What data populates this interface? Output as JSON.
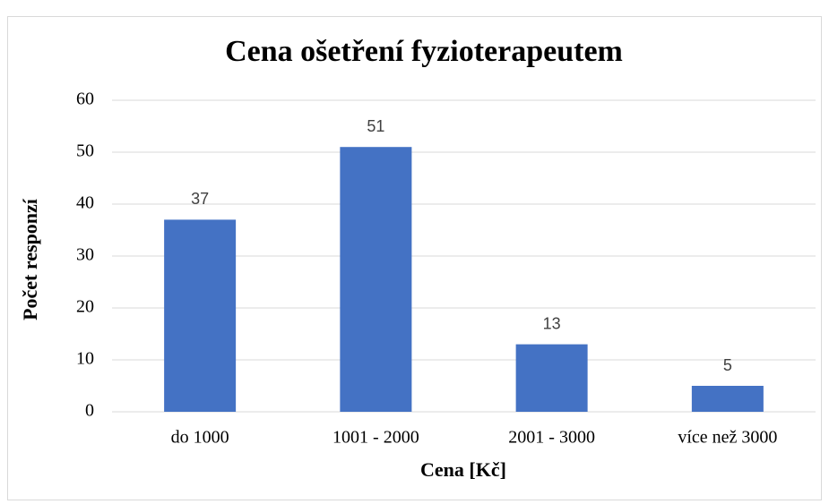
{
  "chart_data": {
    "type": "bar",
    "title": "Cena ošetření fyzioterapeutem",
    "x_label": "Cena [Kč]",
    "y_label": "Počet responzí",
    "categories": [
      "do 1000",
      "1001 - 2000",
      "2001 - 3000",
      "více než 3000"
    ],
    "values": [
      37,
      51,
      13,
      5
    ],
    "color": "#4472c4",
    "ylim": [
      0,
      60
    ],
    "yticks": [
      0,
      10,
      20,
      30,
      40,
      50,
      60
    ],
    "grid": true,
    "data_labels": true
  }
}
